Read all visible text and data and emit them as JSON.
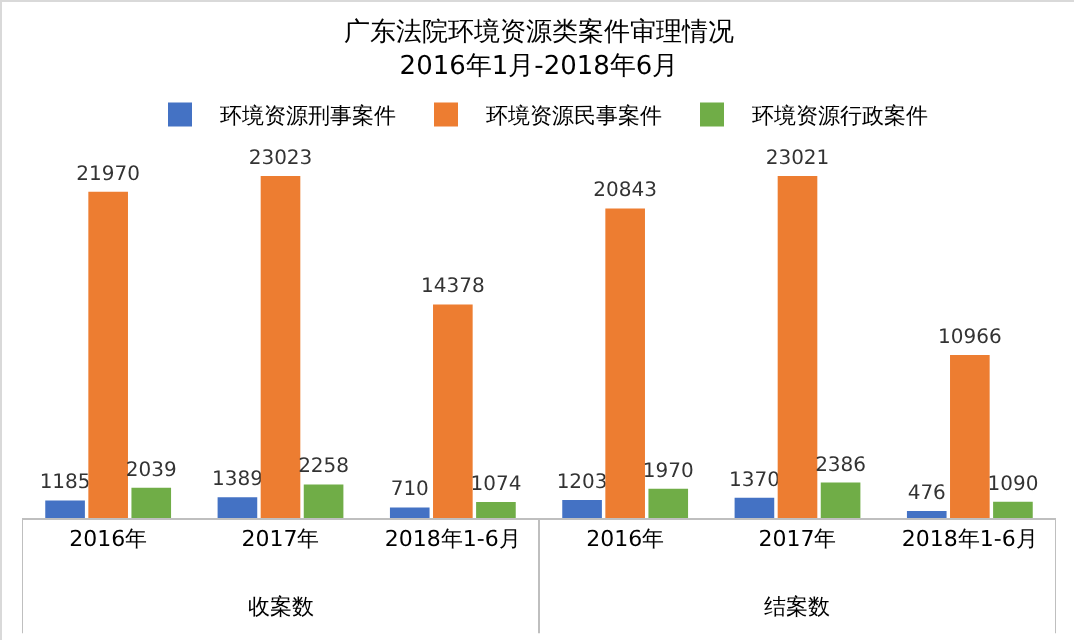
{
  "chart_data": {
    "type": "bar",
    "title": "广东法院环境资源类案件审理情况",
    "subtitle": "2016年1月-2018年6月",
    "categories": [
      "2016年",
      "2017年",
      "2018年1-6月",
      "2016年",
      "2017年",
      "2018年1-6月"
    ],
    "series": [
      {
        "name": "环境资源刑事案件",
        "color": "#4472c4",
        "values": [
          1185,
          1389,
          710,
          1203,
          1370,
          476
        ]
      },
      {
        "name": "环境资源民事案件",
        "color": "#ed7d31",
        "values": [
          21970,
          23023,
          14378,
          20843,
          23021,
          10966
        ]
      },
      {
        "name": "环境资源行政案件",
        "color": "#70ad47",
        "values": [
          2039,
          2258,
          1074,
          1970,
          2386,
          1090
        ]
      }
    ],
    "annotations": [
      "收案数",
      "结案数"
    ],
    "data_labels": true,
    "legend": "top"
  }
}
